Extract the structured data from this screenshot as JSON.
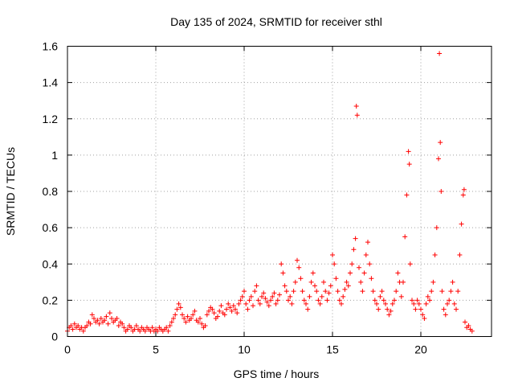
{
  "chart_data": {
    "type": "scatter",
    "title": "Day 135 of 2024, SRMTID for receiver sthl",
    "xlabel": "GPS time / hours",
    "ylabel": "SRMTID / TECUs",
    "xlim": [
      0,
      24
    ],
    "ylim": [
      0,
      1.6
    ],
    "xticks": [
      0,
      5,
      10,
      15,
      20
    ],
    "xtick_labels": [
      "0",
      "5",
      "10",
      "15",
      "20"
    ],
    "yticks": [
      0,
      0.2,
      0.4,
      0.6,
      0.8,
      1.0,
      1.2,
      1.4,
      1.6
    ],
    "ytick_labels": [
      "0",
      "0.2",
      "0.4",
      "0.6",
      "0.8",
      "1",
      "1.2",
      "1.4",
      "1.6"
    ],
    "grid": true,
    "marker": "plus",
    "marker_color": "#ff0000",
    "series": [
      {
        "name": "SRMTID",
        "color": "#ff0000",
        "points": [
          [
            0.0,
            0.03
          ],
          [
            0.1,
            0.05
          ],
          [
            0.2,
            0.06
          ],
          [
            0.3,
            0.04
          ],
          [
            0.4,
            0.07
          ],
          [
            0.5,
            0.05
          ],
          [
            0.6,
            0.06
          ],
          [
            0.7,
            0.04
          ],
          [
            0.8,
            0.05
          ],
          [
            0.9,
            0.03
          ],
          [
            1.0,
            0.05
          ],
          [
            1.1,
            0.06
          ],
          [
            1.2,
            0.08
          ],
          [
            1.3,
            0.07
          ],
          [
            1.4,
            0.12
          ],
          [
            1.5,
            0.1
          ],
          [
            1.6,
            0.08
          ],
          [
            1.7,
            0.09
          ],
          [
            1.8,
            0.07
          ],
          [
            1.9,
            0.1
          ],
          [
            2.0,
            0.08
          ],
          [
            2.1,
            0.09
          ],
          [
            2.2,
            0.11
          ],
          [
            2.3,
            0.07
          ],
          [
            2.4,
            0.13
          ],
          [
            2.5,
            0.1
          ],
          [
            2.6,
            0.08
          ],
          [
            2.7,
            0.09
          ],
          [
            2.8,
            0.1
          ],
          [
            2.9,
            0.06
          ],
          [
            3.0,
            0.08
          ],
          [
            3.1,
            0.07
          ],
          [
            3.2,
            0.05
          ],
          [
            3.3,
            0.03
          ],
          [
            3.4,
            0.04
          ],
          [
            3.5,
            0.06
          ],
          [
            3.6,
            0.05
          ],
          [
            3.7,
            0.03
          ],
          [
            3.8,
            0.04
          ],
          [
            3.9,
            0.06
          ],
          [
            4.0,
            0.04
          ],
          [
            4.1,
            0.03
          ],
          [
            4.2,
            0.05
          ],
          [
            4.3,
            0.04
          ],
          [
            4.4,
            0.03
          ],
          [
            4.5,
            0.05
          ],
          [
            4.6,
            0.04
          ],
          [
            4.7,
            0.03
          ],
          [
            4.8,
            0.05
          ],
          [
            4.9,
            0.03
          ],
          [
            5.0,
            0.04
          ],
          [
            5.1,
            0.03
          ],
          [
            5.2,
            0.05
          ],
          [
            5.3,
            0.04
          ],
          [
            5.4,
            0.03
          ],
          [
            5.5,
            0.04
          ],
          [
            5.6,
            0.05
          ],
          [
            5.7,
            0.03
          ],
          [
            5.8,
            0.06
          ],
          [
            5.9,
            0.08
          ],
          [
            6.0,
            0.1
          ],
          [
            6.1,
            0.12
          ],
          [
            6.2,
            0.15
          ],
          [
            6.3,
            0.18
          ],
          [
            6.4,
            0.16
          ],
          [
            6.5,
            0.12
          ],
          [
            6.6,
            0.1
          ],
          [
            6.7,
            0.08
          ],
          [
            6.8,
            0.11
          ],
          [
            6.9,
            0.09
          ],
          [
            7.0,
            0.1
          ],
          [
            7.1,
            0.12
          ],
          [
            7.2,
            0.14
          ],
          [
            7.3,
            0.09
          ],
          [
            7.4,
            0.08
          ],
          [
            7.5,
            0.1
          ],
          [
            7.6,
            0.07
          ],
          [
            7.7,
            0.05
          ],
          [
            7.8,
            0.06
          ],
          [
            7.9,
            0.12
          ],
          [
            8.0,
            0.14
          ],
          [
            8.1,
            0.16
          ],
          [
            8.2,
            0.15
          ],
          [
            8.3,
            0.13
          ],
          [
            8.4,
            0.1
          ],
          [
            8.5,
            0.11
          ],
          [
            8.6,
            0.14
          ],
          [
            8.7,
            0.17
          ],
          [
            8.8,
            0.13
          ],
          [
            8.9,
            0.12
          ],
          [
            9.0,
            0.15
          ],
          [
            9.1,
            0.18
          ],
          [
            9.2,
            0.16
          ],
          [
            9.3,
            0.14
          ],
          [
            9.4,
            0.17
          ],
          [
            9.5,
            0.15
          ],
          [
            9.6,
            0.13
          ],
          [
            9.7,
            0.18
          ],
          [
            9.8,
            0.2
          ],
          [
            9.9,
            0.22
          ],
          [
            10.0,
            0.25
          ],
          [
            10.1,
            0.18
          ],
          [
            10.2,
            0.15
          ],
          [
            10.3,
            0.2
          ],
          [
            10.4,
            0.22
          ],
          [
            10.5,
            0.17
          ],
          [
            10.6,
            0.25
          ],
          [
            10.7,
            0.28
          ],
          [
            10.8,
            0.2
          ],
          [
            10.9,
            0.18
          ],
          [
            11.0,
            0.22
          ],
          [
            11.1,
            0.24
          ],
          [
            11.2,
            0.21
          ],
          [
            11.3,
            0.19
          ],
          [
            11.4,
            0.17
          ],
          [
            11.5,
            0.2
          ],
          [
            11.6,
            0.22
          ],
          [
            11.7,
            0.24
          ],
          [
            11.8,
            0.18
          ],
          [
            11.9,
            0.2
          ],
          [
            12.0,
            0.23
          ],
          [
            12.1,
            0.4
          ],
          [
            12.2,
            0.35
          ],
          [
            12.3,
            0.28
          ],
          [
            12.4,
            0.25
          ],
          [
            12.5,
            0.2
          ],
          [
            12.6,
            0.22
          ],
          [
            12.7,
            0.18
          ],
          [
            12.8,
            0.25
          ],
          [
            12.9,
            0.3
          ],
          [
            13.0,
            0.42
          ],
          [
            13.1,
            0.38
          ],
          [
            13.2,
            0.32
          ],
          [
            13.3,
            0.25
          ],
          [
            13.4,
            0.2
          ],
          [
            13.5,
            0.18
          ],
          [
            13.6,
            0.15
          ],
          [
            13.7,
            0.22
          ],
          [
            13.8,
            0.3
          ],
          [
            13.9,
            0.35
          ],
          [
            14.0,
            0.28
          ],
          [
            14.1,
            0.25
          ],
          [
            14.2,
            0.2
          ],
          [
            14.3,
            0.18
          ],
          [
            14.4,
            0.22
          ],
          [
            14.5,
            0.3
          ],
          [
            14.6,
            0.25
          ],
          [
            14.7,
            0.2
          ],
          [
            14.8,
            0.24
          ],
          [
            14.9,
            0.28
          ],
          [
            15.0,
            0.45
          ],
          [
            15.1,
            0.4
          ],
          [
            15.2,
            0.32
          ],
          [
            15.3,
            0.25
          ],
          [
            15.4,
            0.2
          ],
          [
            15.5,
            0.18
          ],
          [
            15.6,
            0.22
          ],
          [
            15.7,
            0.26
          ],
          [
            15.8,
            0.3
          ],
          [
            15.9,
            0.28
          ],
          [
            16.0,
            0.35
          ],
          [
            16.1,
            0.4
          ],
          [
            16.2,
            0.48
          ],
          [
            16.3,
            0.54
          ],
          [
            16.35,
            1.27
          ],
          [
            16.4,
            1.22
          ],
          [
            16.5,
            0.38
          ],
          [
            16.6,
            0.3
          ],
          [
            16.7,
            0.25
          ],
          [
            16.8,
            0.35
          ],
          [
            16.9,
            0.45
          ],
          [
            17.0,
            0.52
          ],
          [
            17.1,
            0.4
          ],
          [
            17.2,
            0.32
          ],
          [
            17.3,
            0.25
          ],
          [
            17.4,
            0.2
          ],
          [
            17.5,
            0.18
          ],
          [
            17.6,
            0.15
          ],
          [
            17.7,
            0.22
          ],
          [
            17.8,
            0.25
          ],
          [
            17.9,
            0.2
          ],
          [
            18.0,
            0.18
          ],
          [
            18.1,
            0.15
          ],
          [
            18.2,
            0.12
          ],
          [
            18.3,
            0.14
          ],
          [
            18.4,
            0.18
          ],
          [
            18.5,
            0.2
          ],
          [
            18.6,
            0.25
          ],
          [
            18.7,
            0.35
          ],
          [
            18.8,
            0.3
          ],
          [
            18.9,
            0.22
          ],
          [
            19.0,
            0.3
          ],
          [
            19.1,
            0.55
          ],
          [
            19.2,
            0.78
          ],
          [
            19.3,
            1.02
          ],
          [
            19.35,
            0.95
          ],
          [
            19.4,
            0.4
          ],
          [
            19.5,
            0.2
          ],
          [
            19.6,
            0.18
          ],
          [
            19.7,
            0.15
          ],
          [
            19.8,
            0.2
          ],
          [
            19.9,
            0.18
          ],
          [
            20.0,
            0.15
          ],
          [
            20.1,
            0.12
          ],
          [
            20.2,
            0.1
          ],
          [
            20.3,
            0.18
          ],
          [
            20.4,
            0.22
          ],
          [
            20.5,
            0.2
          ],
          [
            20.6,
            0.25
          ],
          [
            20.7,
            0.3
          ],
          [
            20.8,
            0.45
          ],
          [
            20.9,
            0.6
          ],
          [
            21.0,
            0.98
          ],
          [
            21.05,
            1.56
          ],
          [
            21.1,
            1.07
          ],
          [
            21.15,
            0.8
          ],
          [
            21.2,
            0.25
          ],
          [
            21.3,
            0.15
          ],
          [
            21.4,
            0.12
          ],
          [
            21.5,
            0.18
          ],
          [
            21.6,
            0.2
          ],
          [
            21.7,
            0.25
          ],
          [
            21.8,
            0.3
          ],
          [
            21.9,
            0.18
          ],
          [
            22.0,
            0.15
          ],
          [
            22.1,
            0.25
          ],
          [
            22.2,
            0.45
          ],
          [
            22.3,
            0.62
          ],
          [
            22.4,
            0.78
          ],
          [
            22.45,
            0.81
          ],
          [
            22.5,
            0.08
          ],
          [
            22.6,
            0.05
          ],
          [
            22.7,
            0.06
          ],
          [
            22.8,
            0.04
          ],
          [
            22.9,
            0.03
          ]
        ]
      }
    ]
  }
}
